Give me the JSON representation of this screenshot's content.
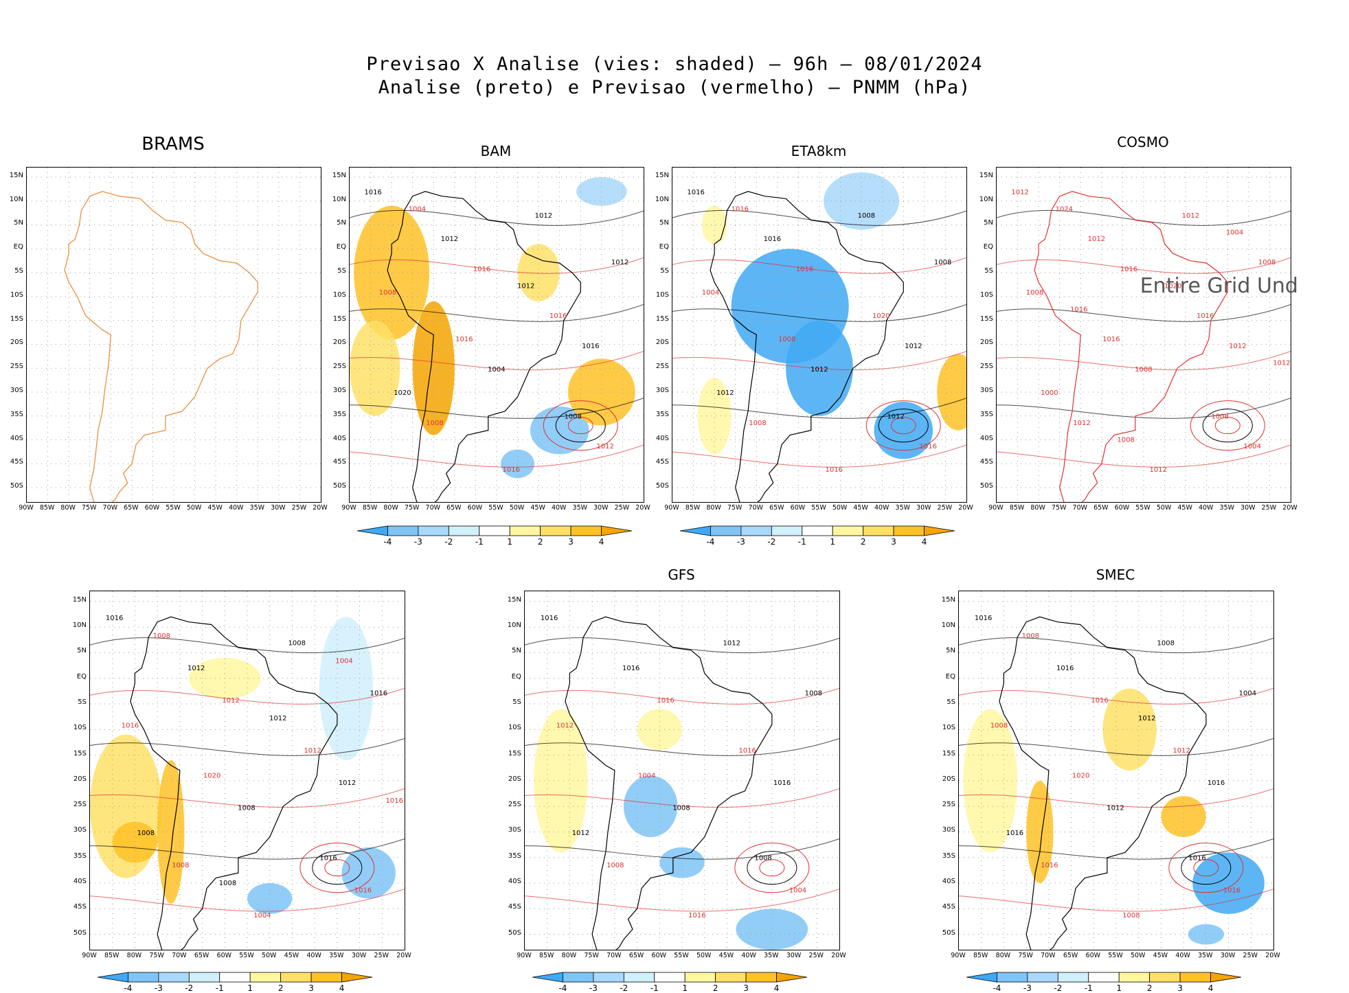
{
  "header": {
    "title_line1": "Previsao X Analise (vies: shaded) – 96h – 08/01/2024",
    "title_line2": "Analise (preto) e Previsao (vermelho) – PNMM (hPa)"
  },
  "axes": {
    "lat_labels": [
      "15N",
      "10N",
      "5N",
      "EQ",
      "5S",
      "10S",
      "15S",
      "20S",
      "25S",
      "30S",
      "35S",
      "40S",
      "45S",
      "50S"
    ],
    "lon_labels": [
      "90W",
      "85W",
      "80W",
      "75W",
      "70W",
      "65W",
      "60W",
      "55W",
      "50W",
      "45W",
      "40W",
      "35W",
      "30W",
      "25W",
      "20W"
    ]
  },
  "colorbar": {
    "labels": [
      "-4",
      "-3",
      "-2",
      "-1",
      "1",
      "2",
      "3",
      "4"
    ],
    "colors": [
      "#3fa9f5",
      "#7fc4f7",
      "#a8d8fb",
      "#d0f0fb",
      "#ffffff",
      "#fff7a0",
      "#ffe066",
      "#ffc226",
      "#f5a400"
    ]
  },
  "panels": [
    {
      "title": "BRAMS",
      "isobars": []
    },
    {
      "title": "BAM",
      "isobars": [
        "1016",
        "1016",
        "1016",
        "1008",
        "1012",
        "1008",
        "1004",
        "1012",
        "1012",
        "1016",
        "1020",
        "1016",
        "1012",
        "1016",
        "1008",
        "1004",
        "1012"
      ]
    },
    {
      "title": "ETA8km",
      "isobars": [
        "1016",
        "1016",
        "1012",
        "1008",
        "1008",
        "1004",
        "1012",
        "1016",
        "1016",
        "1020",
        "1012",
        "1016",
        "1008",
        "1008",
        "1012",
        "1016"
      ]
    },
    {
      "title": "COSMO",
      "isobars": [
        "1012",
        "1016",
        "1012",
        "1012",
        "1012",
        "1008",
        "1008",
        "1004",
        "1012",
        "1016",
        "1000",
        "1012",
        "1008",
        "1016",
        "1008",
        "1024",
        "1020",
        "1012",
        "1008",
        "1004",
        "1016"
      ],
      "overlay_text": "Entire Grid Und"
    },
    {
      "title": "",
      "isobars": [
        "1016",
        "1012",
        "1012",
        "1008",
        "1008",
        "1016",
        "1008",
        "1016",
        "1012",
        "1012",
        "1008",
        "1004",
        "1016",
        "1020",
        "1016",
        "1008",
        "1012",
        "1016",
        "1008",
        "1004"
      ]
    },
    {
      "title": "GFS",
      "isobars": [
        "1016",
        "1016",
        "1016",
        "1008",
        "1012",
        "1012",
        "1008",
        "1004",
        "1016",
        "1016",
        "1012",
        "1016",
        "1008",
        "1004",
        "1008"
      ]
    },
    {
      "title": "SMEC",
      "isobars": [
        "1016",
        "1016",
        "1016",
        "1016",
        "1008",
        "1008",
        "1012",
        "1016",
        "1016",
        "1012",
        "1016",
        "1008",
        "1004",
        "1020",
        "1016",
        "1008",
        "1012"
      ]
    }
  ]
}
